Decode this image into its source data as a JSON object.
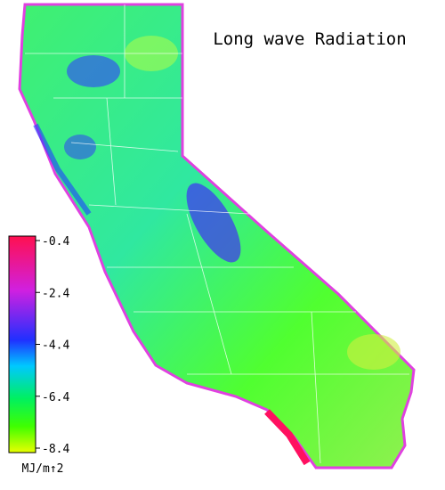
{
  "title": "Long wave Radiation",
  "colorbar": {
    "range": [
      -8.4,
      -0.4
    ],
    "ticks": [
      -0.4,
      -2.4,
      -4.4,
      -6.4,
      -8.4
    ],
    "unit": "MJ/m↑2"
  }
}
